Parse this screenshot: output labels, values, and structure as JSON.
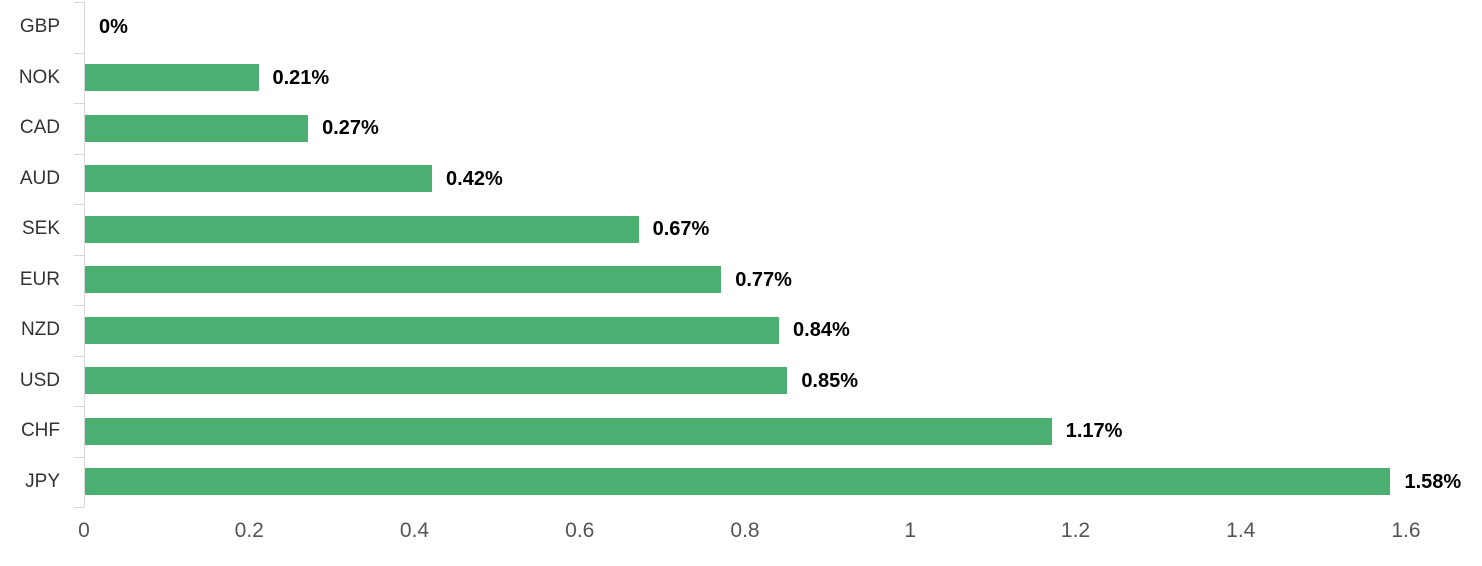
{
  "chart_data": {
    "type": "bar",
    "orientation": "horizontal",
    "title": "",
    "xlabel": "",
    "ylabel": "",
    "categories": [
      "GBP",
      "NOK",
      "CAD",
      "AUD",
      "SEK",
      "EUR",
      "NZD",
      "USD",
      "CHF",
      "JPY"
    ],
    "values": [
      0,
      0.21,
      0.27,
      0.42,
      0.67,
      0.77,
      0.84,
      0.85,
      1.17,
      1.58
    ],
    "value_labels": [
      "0%",
      "0.21%",
      "0.27%",
      "0.42%",
      "0.67%",
      "0.77%",
      "0.84%",
      "0.85%",
      "1.17%",
      "1.58%"
    ],
    "xlim": [
      0,
      1.6
    ],
    "x_ticks": [
      0,
      0.2,
      0.4,
      0.6,
      0.8,
      1,
      1.2,
      1.4,
      1.6
    ],
    "x_tick_labels": [
      "0",
      "0.2",
      "0.4",
      "0.6",
      "0.8",
      "1",
      "1.2",
      "1.4",
      "1.6"
    ],
    "grid": false,
    "legend": "none",
    "colors": {
      "bar": "#4caf72",
      "axis_line": "#d8d8d8",
      "category_label": "#333333",
      "x_tick_label": "#555555",
      "value_label": "#000000",
      "background": "#ffffff"
    }
  }
}
